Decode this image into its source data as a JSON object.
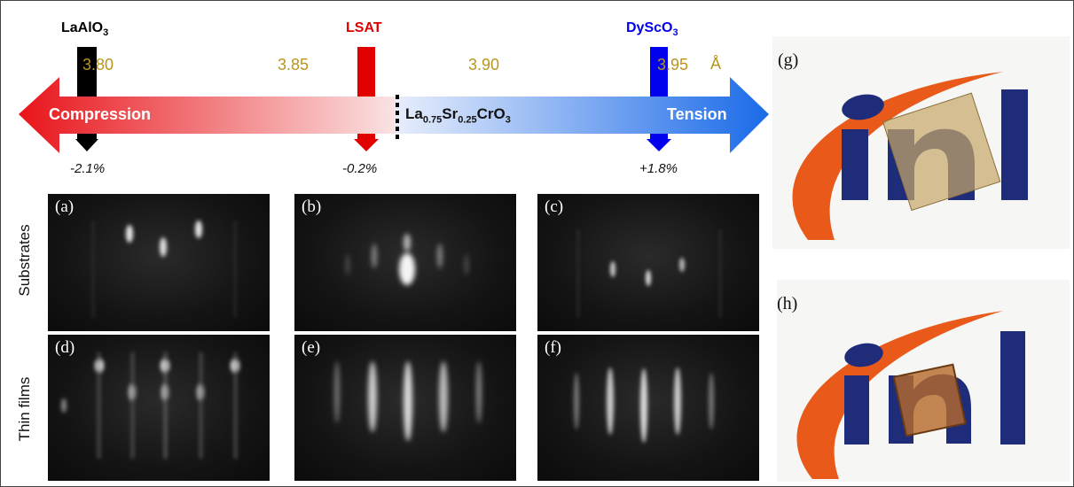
{
  "substrates": {
    "laalo3": {
      "base": "LaAlO",
      "sub": "3",
      "color": "#000000",
      "strain": "-2.1%"
    },
    "lsat": {
      "base": "LSAT",
      "sub": "",
      "color": "#e00000",
      "strain": "-0.2%"
    },
    "dysco3": {
      "base": "DyScO",
      "sub": "3",
      "color": "#0000ee",
      "strain": "+1.8%"
    }
  },
  "lattice_scale": {
    "ticks": [
      "3.80",
      "3.85",
      "3.90",
      "3.95"
    ],
    "unit": "Å",
    "color": "#b8961e"
  },
  "arrow": {
    "left_label": "Compression",
    "right_label": "Tension",
    "compression_color": "#e8141a",
    "tension_color": "#1a6ae8",
    "film": {
      "la": "La",
      "la_sub": "0.75",
      "sr": "Sr",
      "sr_sub": "0.25",
      "cr": "CrO",
      "o_sub": "3"
    }
  },
  "rows": {
    "substrates": "Substrates",
    "thin_films": "Thin films"
  },
  "panels": {
    "a": "(a)",
    "b": "(b)",
    "c": "(c)",
    "d": "(d)",
    "e": "(e)",
    "f": "(f)",
    "g": "(g)",
    "h": "(h)"
  },
  "logo": {
    "text": "inl",
    "letter_color": "#1f2c7a",
    "swoosh_color": "#e8591a"
  }
}
